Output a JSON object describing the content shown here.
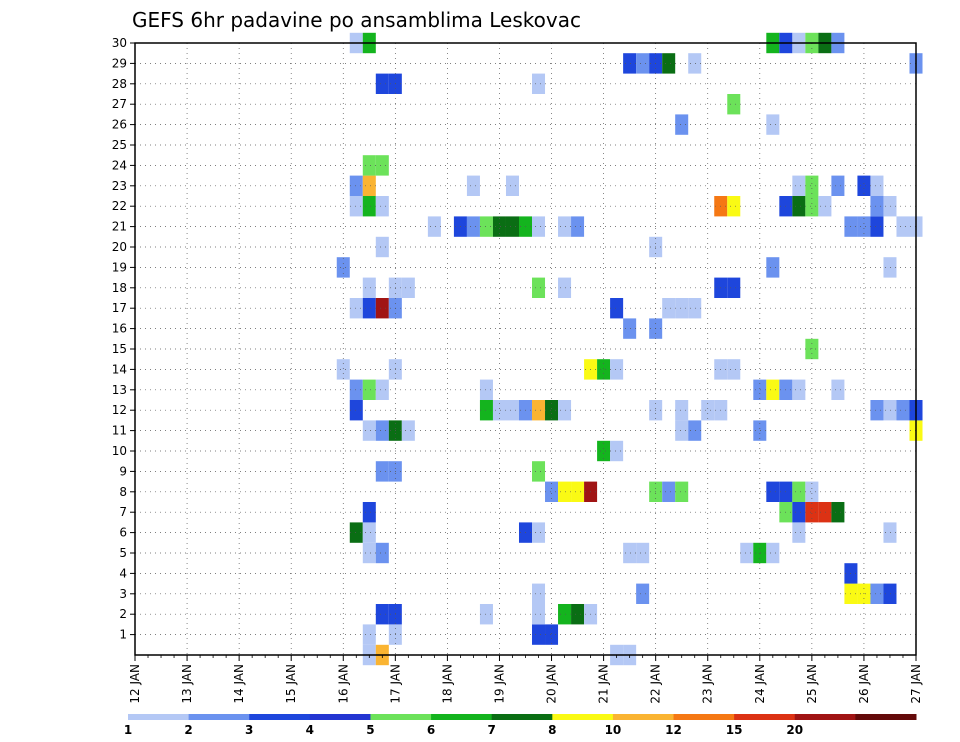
{
  "chart_data": {
    "type": "heatmap",
    "title": "GEFS 6hr padavine po ansamblima Leskovac",
    "x_ticks": [
      "12 JAN",
      "13 JAN",
      "14 JAN",
      "15 JAN",
      "16 JAN",
      "17 JAN",
      "18 JAN",
      "19 JAN",
      "20 JAN",
      "21 JAN",
      "22 JAN",
      "23 JAN",
      "24 JAN",
      "25 JAN",
      "26 JAN",
      "27 JAN"
    ],
    "y_ticks": [
      "1",
      "2",
      "3",
      "4",
      "5",
      "6",
      "7",
      "8",
      "9",
      "10",
      "11",
      "12",
      "13",
      "14",
      "15",
      "16",
      "17",
      "18",
      "19",
      "20",
      "21",
      "22",
      "23",
      "24",
      "25",
      "26",
      "27",
      "28",
      "29",
      "30"
    ],
    "colorbar": {
      "labels": [
        "1",
        "2",
        "3",
        "4",
        "5",
        "6",
        "7",
        "8",
        "10",
        "12",
        "15",
        "20"
      ],
      "colors": [
        "#b4c8f5",
        "#6b92ef",
        "#1e46dc",
        "#2335d2",
        "#6ce25a",
        "#14b41e",
        "#0a6e14",
        "#fafa14",
        "#fab432",
        "#f57814",
        "#dc3214",
        "#a01414",
        "#640a0a"
      ]
    },
    "grid": true,
    "cells": [
      [
        16.5,
        0,
        0
      ],
      [
        16.75,
        0,
        8
      ],
      [
        21.25,
        0,
        0
      ],
      [
        21.5,
        0,
        0
      ],
      [
        16.5,
        1,
        0
      ],
      [
        17.0,
        1,
        0
      ],
      [
        19.75,
        1,
        2
      ],
      [
        20.0,
        1,
        2
      ],
      [
        16.75,
        2,
        2
      ],
      [
        17.0,
        2,
        2
      ],
      [
        18.75,
        2,
        0
      ],
      [
        19.75,
        2,
        0
      ],
      [
        20.25,
        2,
        5
      ],
      [
        20.5,
        2,
        6
      ],
      [
        20.75,
        2,
        0
      ],
      [
        19.75,
        3,
        0
      ],
      [
        21.75,
        3,
        1
      ],
      [
        25.75,
        3,
        7
      ],
      [
        26.0,
        3,
        7
      ],
      [
        26.25,
        3,
        1
      ],
      [
        26.5,
        3,
        2
      ],
      [
        25.75,
        4,
        2
      ],
      [
        16.5,
        5,
        0
      ],
      [
        16.75,
        5,
        1
      ],
      [
        21.5,
        5,
        0
      ],
      [
        21.75,
        5,
        0
      ],
      [
        23.75,
        5,
        0
      ],
      [
        24.0,
        5,
        5
      ],
      [
        24.25,
        5,
        0
      ],
      [
        16.25,
        6,
        6
      ],
      [
        16.5,
        6,
        0
      ],
      [
        19.5,
        6,
        2
      ],
      [
        19.75,
        6,
        0
      ],
      [
        24.75,
        6,
        0
      ],
      [
        26.5,
        6,
        0
      ],
      [
        16.5,
        7,
        2
      ],
      [
        24.5,
        7,
        4
      ],
      [
        24.75,
        7,
        2
      ],
      [
        25.0,
        7,
        10
      ],
      [
        25.25,
        7,
        10
      ],
      [
        25.5,
        7,
        6
      ],
      [
        20.0,
        8,
        1
      ],
      [
        20.25,
        8,
        7
      ],
      [
        20.5,
        8,
        7
      ],
      [
        20.75,
        8,
        11
      ],
      [
        22.0,
        8,
        4
      ],
      [
        22.25,
        8,
        1
      ],
      [
        22.5,
        8,
        4
      ],
      [
        24.25,
        8,
        2
      ],
      [
        24.5,
        8,
        2
      ],
      [
        24.75,
        8,
        4
      ],
      [
        25.0,
        8,
        0
      ],
      [
        16.75,
        9,
        1
      ],
      [
        17.0,
        9,
        1
      ],
      [
        19.75,
        9,
        4
      ],
      [
        21.0,
        10,
        5
      ],
      [
        21.25,
        10,
        0
      ],
      [
        16.5,
        11,
        0
      ],
      [
        16.75,
        11,
        1
      ],
      [
        17.0,
        11,
        6
      ],
      [
        17.25,
        11,
        0
      ],
      [
        22.5,
        11,
        0
      ],
      [
        22.75,
        11,
        1
      ],
      [
        24.0,
        11,
        1
      ],
      [
        27.0,
        11,
        7
      ],
      [
        16.25,
        12,
        2
      ],
      [
        18.75,
        12,
        5
      ],
      [
        19.0,
        12,
        0
      ],
      [
        19.25,
        12,
        0
      ],
      [
        19.5,
        12,
        1
      ],
      [
        19.75,
        12,
        8
      ],
      [
        20.0,
        12,
        6
      ],
      [
        20.25,
        12,
        0
      ],
      [
        22.0,
        12,
        0
      ],
      [
        22.5,
        12,
        0
      ],
      [
        23.0,
        12,
        0
      ],
      [
        23.25,
        12,
        0
      ],
      [
        26.25,
        12,
        1
      ],
      [
        26.5,
        12,
        0
      ],
      [
        26.75,
        12,
        1
      ],
      [
        27.0,
        12,
        2
      ],
      [
        16.25,
        13,
        1
      ],
      [
        16.5,
        13,
        4
      ],
      [
        16.75,
        13,
        0
      ],
      [
        18.75,
        13,
        0
      ],
      [
        24.0,
        13,
        1
      ],
      [
        24.25,
        13,
        7
      ],
      [
        24.5,
        13,
        1
      ],
      [
        24.75,
        13,
        0
      ],
      [
        25.5,
        13,
        0
      ],
      [
        16.0,
        14,
        0
      ],
      [
        17.0,
        14,
        0
      ],
      [
        20.75,
        14,
        7
      ],
      [
        21.0,
        14,
        5
      ],
      [
        21.25,
        14,
        0
      ],
      [
        23.25,
        14,
        0
      ],
      [
        23.5,
        14,
        0
      ],
      [
        25.0,
        15,
        4
      ],
      [
        21.5,
        16,
        1
      ],
      [
        22.0,
        16,
        1
      ],
      [
        16.25,
        17,
        0
      ],
      [
        16.5,
        17,
        2
      ],
      [
        16.75,
        17,
        11
      ],
      [
        17.0,
        17,
        1
      ],
      [
        21.25,
        17,
        2
      ],
      [
        22.25,
        17,
        0
      ],
      [
        22.5,
        17,
        0
      ],
      [
        22.75,
        17,
        0
      ],
      [
        16.5,
        18,
        0
      ],
      [
        17.0,
        18,
        0
      ],
      [
        17.25,
        18,
        0
      ],
      [
        19.75,
        18,
        4
      ],
      [
        20.25,
        18,
        0
      ],
      [
        23.25,
        18,
        2
      ],
      [
        23.5,
        18,
        2
      ],
      [
        16.0,
        19,
        1
      ],
      [
        24.25,
        19,
        1
      ],
      [
        26.5,
        19,
        0
      ],
      [
        16.75,
        20,
        0
      ],
      [
        22.0,
        20,
        0
      ],
      [
        17.75,
        21,
        0
      ],
      [
        18.25,
        21,
        2
      ],
      [
        18.5,
        21,
        1
      ],
      [
        18.75,
        21,
        4
      ],
      [
        19.0,
        21,
        6
      ],
      [
        19.25,
        21,
        6
      ],
      [
        19.5,
        21,
        5
      ],
      [
        19.75,
        21,
        0
      ],
      [
        20.25,
        21,
        0
      ],
      [
        20.5,
        21,
        1
      ],
      [
        25.75,
        21,
        1
      ],
      [
        26.0,
        21,
        1
      ],
      [
        26.25,
        21,
        2
      ],
      [
        26.75,
        21,
        0
      ],
      [
        27.0,
        21,
        0
      ],
      [
        16.25,
        22,
        0
      ],
      [
        16.5,
        22,
        5
      ],
      [
        16.75,
        22,
        0
      ],
      [
        23.25,
        22,
        9
      ],
      [
        23.5,
        22,
        7
      ],
      [
        24.5,
        22,
        2
      ],
      [
        24.75,
        22,
        6
      ],
      [
        25.0,
        22,
        4
      ],
      [
        25.25,
        22,
        0
      ],
      [
        26.25,
        22,
        1
      ],
      [
        26.5,
        22,
        0
      ],
      [
        16.25,
        23,
        1
      ],
      [
        16.5,
        23,
        8
      ],
      [
        18.5,
        23,
        0
      ],
      [
        19.25,
        23,
        0
      ],
      [
        24.75,
        23,
        0
      ],
      [
        25.0,
        23,
        4
      ],
      [
        25.5,
        23,
        1
      ],
      [
        26.0,
        23,
        2
      ],
      [
        26.25,
        23,
        0
      ],
      [
        16.5,
        24,
        4
      ],
      [
        16.75,
        24,
        4
      ],
      [
        22.5,
        26,
        1
      ],
      [
        24.25,
        26,
        0
      ],
      [
        23.5,
        27,
        4
      ],
      [
        16.75,
        28,
        2
      ],
      [
        17.0,
        28,
        2
      ],
      [
        19.75,
        28,
        0
      ],
      [
        21.5,
        29,
        2
      ],
      [
        21.75,
        29,
        1
      ],
      [
        22.0,
        29,
        2
      ],
      [
        22.25,
        29,
        6
      ],
      [
        22.75,
        29,
        0
      ],
      [
        27.0,
        29,
        1
      ],
      [
        16.25,
        30,
        0
      ],
      [
        16.5,
        30,
        5
      ],
      [
        24.25,
        30,
        5
      ],
      [
        24.5,
        30,
        2
      ],
      [
        24.75,
        30,
        0
      ],
      [
        25.0,
        30,
        4
      ],
      [
        25.25,
        30,
        6
      ],
      [
        25.5,
        30,
        1
      ]
    ]
  }
}
